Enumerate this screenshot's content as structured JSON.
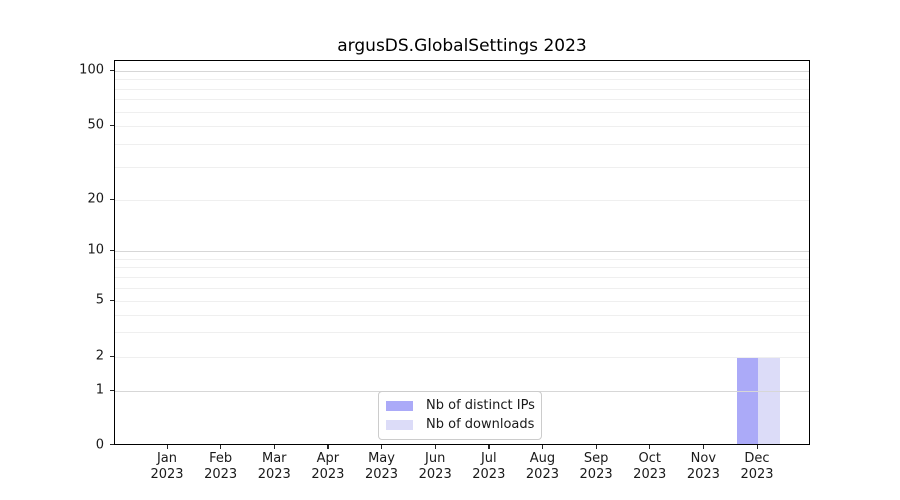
{
  "figure": {
    "background": "#ffffff"
  },
  "chart_data": {
    "type": "bar",
    "title": "argusDS.GlobalSettings 2023",
    "categories": [
      "Jan 2023",
      "Feb 2023",
      "Mar 2023",
      "Apr 2023",
      "May 2023",
      "Jun 2023",
      "Jul 2023",
      "Aug 2023",
      "Sep 2023",
      "Oct 2023",
      "Nov 2023",
      "Dec 2023"
    ],
    "series": [
      {
        "name": "Nb of distinct IPs",
        "color": "#abaaf8",
        "values": [
          0,
          0,
          0,
          0,
          0,
          0,
          0,
          0,
          0,
          0,
          0,
          2
        ]
      },
      {
        "name": "Nb of downloads",
        "color": "#dcdcf8",
        "values": [
          0,
          0,
          0,
          0,
          0,
          0,
          0,
          0,
          0,
          0,
          0,
          2
        ]
      }
    ],
    "xlabel": "",
    "ylabel": "",
    "yscale": "symlog",
    "ylim": [
      0,
      110
    ],
    "yticks": [
      0,
      1,
      2,
      5,
      10,
      20,
      50,
      100
    ],
    "major_gridlines": [
      1,
      10,
      100
    ],
    "minor_gridlines": [
      2,
      3,
      4,
      5,
      6,
      7,
      8,
      9,
      20,
      30,
      40,
      50,
      60,
      70,
      80,
      90
    ],
    "grid": true,
    "legend_position": "lower center"
  },
  "colors": {
    "major_grid": "#d7d7d7",
    "minor_grid": "#efefef",
    "spine": "#000000",
    "text": "#1a1a1a"
  }
}
